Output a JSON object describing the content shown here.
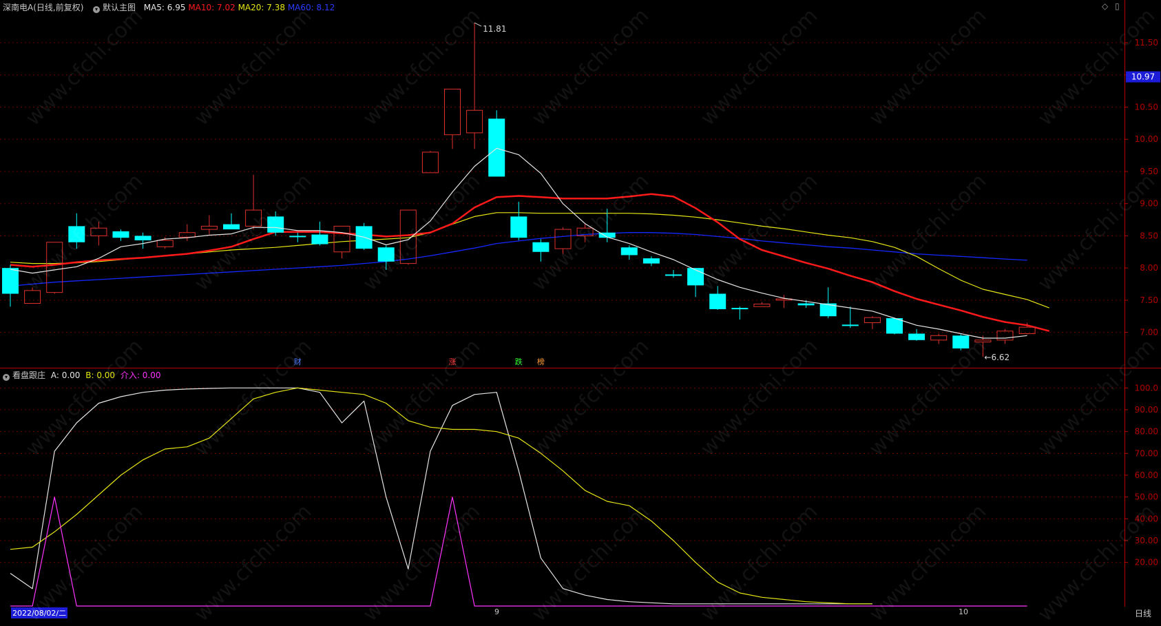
{
  "header": {
    "stock_title": "深南电A(日线,前复权)",
    "main_chart_label": "默认主图",
    "ma5_label": "MA5: 6.95",
    "ma10_label": "MA10: 7.02",
    "ma20_label": "MA20: 7.38",
    "ma60_label": "MA60: 8.12"
  },
  "indicator_header": {
    "name": "看盘跟庄",
    "a_label": "A: 0.00",
    "b_label": "B: 0.00",
    "c_label": "介入: 0.00"
  },
  "bottom_bar": {
    "date_label": "2022/08/02/二",
    "month_9": "9",
    "month_10": "10",
    "period_label": "日线"
  },
  "watermark": "www.cfchi.com",
  "colors": {
    "up": "#e0312d",
    "down": "#00ffff",
    "ma5": "#e6e6e6",
    "ma10": "#ff1a1a",
    "ma20": "#e6e614",
    "ma60": "#1428ff",
    "ind_a": "#e6e6e6",
    "ind_b": "#e6e614",
    "ind_c": "#ff33ff",
    "grid": "#6a0000",
    "axis": "#b40000"
  },
  "chart_data": [
    {
      "type": "candlestick",
      "title": "深南电A(日线,前复权)",
      "ylim": [
        6.45,
        11.95
      ],
      "y_ticks": [
        "7.00",
        "7.50",
        "8.00",
        "8.50",
        "9.00",
        "9.50",
        "10.00",
        "10.50",
        "11.00",
        "11.50"
      ],
      "current_price": "10.97",
      "annotations": {
        "high": "11.81",
        "low": "6.62"
      },
      "event_markers": [
        {
          "index": 13,
          "text": "财",
          "color": "#4d79ff"
        },
        {
          "index": 20,
          "text": "涨",
          "color": "#ff3333"
        },
        {
          "index": 23,
          "text": "跌",
          "color": "#33ff33"
        },
        {
          "index": 24,
          "text": "榜",
          "color": "#ff9933"
        }
      ],
      "candles": [
        {
          "o": 8.0,
          "c": 7.6,
          "h": 8.05,
          "l": 7.4
        },
        {
          "o": 7.45,
          "c": 7.65,
          "h": 7.7,
          "l": 7.45
        },
        {
          "o": 7.62,
          "c": 8.4,
          "h": 8.4,
          "l": 7.6
        },
        {
          "o": 8.65,
          "c": 8.4,
          "h": 8.85,
          "l": 8.3
        },
        {
          "o": 8.5,
          "c": 8.62,
          "h": 8.72,
          "l": 8.35
        },
        {
          "o": 8.57,
          "c": 8.47,
          "h": 8.6,
          "l": 8.42
        },
        {
          "o": 8.5,
          "c": 8.43,
          "h": 8.55,
          "l": 8.3
        },
        {
          "o": 8.33,
          "c": 8.43,
          "h": 8.48,
          "l": 8.3
        },
        {
          "o": 8.48,
          "c": 8.55,
          "h": 8.68,
          "l": 8.42
        },
        {
          "o": 8.6,
          "c": 8.65,
          "h": 8.82,
          "l": 8.52
        },
        {
          "o": 8.68,
          "c": 8.6,
          "h": 8.85,
          "l": 8.6
        },
        {
          "o": 8.65,
          "c": 8.9,
          "h": 9.45,
          "l": 8.6
        },
        {
          "o": 8.8,
          "c": 8.55,
          "h": 8.88,
          "l": 8.5
        },
        {
          "o": 8.5,
          "c": 8.48,
          "h": 8.55,
          "l": 8.4
        },
        {
          "o": 8.52,
          "c": 8.37,
          "h": 8.72,
          "l": 8.35
        },
        {
          "o": 8.25,
          "c": 8.65,
          "h": 8.65,
          "l": 8.15
        },
        {
          "o": 8.65,
          "c": 8.3,
          "h": 8.7,
          "l": 8.28
        },
        {
          "o": 8.32,
          "c": 8.1,
          "h": 8.35,
          "l": 7.97
        },
        {
          "o": 8.07,
          "c": 8.9,
          "h": 8.9,
          "l": 8.05
        },
        {
          "o": 9.48,
          "c": 9.8,
          "h": 9.82,
          "l": 9.48
        },
        {
          "o": 10.07,
          "c": 10.78,
          "h": 10.78,
          "l": 9.85
        },
        {
          "o": 10.1,
          "c": 10.45,
          "h": 11.81,
          "l": 9.85
        },
        {
          "o": 10.32,
          "c": 9.42,
          "h": 10.45,
          "l": 9.42
        },
        {
          "o": 8.8,
          "c": 8.47,
          "h": 9.03,
          "l": 8.43
        },
        {
          "o": 8.4,
          "c": 8.25,
          "h": 8.45,
          "l": 8.1
        },
        {
          "o": 8.3,
          "c": 8.6,
          "h": 8.63,
          "l": 8.22
        },
        {
          "o": 8.5,
          "c": 8.62,
          "h": 8.68,
          "l": 8.4
        },
        {
          "o": 8.55,
          "c": 8.47,
          "h": 8.92,
          "l": 8.4
        },
        {
          "o": 8.32,
          "c": 8.2,
          "h": 8.35,
          "l": 8.13
        },
        {
          "o": 8.15,
          "c": 8.07,
          "h": 8.18,
          "l": 8.03
        },
        {
          "o": 7.9,
          "c": 7.88,
          "h": 7.97,
          "l": 7.85
        },
        {
          "o": 8.0,
          "c": 7.73,
          "h": 8.0,
          "l": 7.55
        },
        {
          "o": 7.6,
          "c": 7.36,
          "h": 7.72,
          "l": 7.35
        },
        {
          "o": 7.38,
          "c": 7.36,
          "h": 7.4,
          "l": 7.2
        },
        {
          "o": 7.4,
          "c": 7.44,
          "h": 7.47,
          "l": 7.4
        },
        {
          "o": 7.5,
          "c": 7.52,
          "h": 7.58,
          "l": 7.38
        },
        {
          "o": 7.45,
          "c": 7.42,
          "h": 7.5,
          "l": 7.38
        },
        {
          "o": 7.45,
          "c": 7.25,
          "h": 7.7,
          "l": 7.22
        },
        {
          "o": 7.12,
          "c": 7.1,
          "h": 7.4,
          "l": 7.07
        },
        {
          "o": 7.15,
          "c": 7.23,
          "h": 7.25,
          "l": 7.05
        },
        {
          "o": 7.22,
          "c": 6.98,
          "h": 7.23,
          "l": 6.97
        },
        {
          "o": 6.98,
          "c": 6.88,
          "h": 7.05,
          "l": 6.87
        },
        {
          "o": 6.88,
          "c": 6.95,
          "h": 6.98,
          "l": 6.82
        },
        {
          "o": 6.95,
          "c": 6.75,
          "h": 6.97,
          "l": 6.72
        },
        {
          "o": 6.85,
          "c": 6.88,
          "h": 6.95,
          "l": 6.62
        },
        {
          "o": 6.88,
          "c": 7.02,
          "h": 7.05,
          "l": 6.82
        },
        {
          "o": 6.98,
          "c": 7.08,
          "h": 7.15,
          "l": 6.97
        }
      ],
      "series": [
        {
          "name": "MA5",
          "values": [
            7.98,
            7.92,
            7.97,
            8.02,
            8.15,
            8.33,
            8.38,
            8.45,
            8.47,
            8.51,
            8.53,
            8.63,
            8.63,
            8.58,
            8.58,
            8.55,
            8.48,
            8.36,
            8.44,
            8.73,
            9.18,
            9.58,
            9.86,
            9.76,
            9.47,
            9.0,
            8.69,
            8.48,
            8.38,
            8.25,
            8.13,
            7.97,
            7.82,
            7.7,
            7.61,
            7.53,
            7.48,
            7.43,
            7.38,
            7.33,
            7.22,
            7.11,
            7.05,
            6.98,
            6.91,
            6.91,
            6.95
          ]
        },
        {
          "name": "MA10",
          "values": [
            8.05,
            8.02,
            8.05,
            8.09,
            8.12,
            8.14,
            8.16,
            8.19,
            8.22,
            8.27,
            8.33,
            8.45,
            8.56,
            8.56,
            8.56,
            8.54,
            8.52,
            8.49,
            8.51,
            8.55,
            8.69,
            8.94,
            9.1,
            9.12,
            9.1,
            9.08,
            9.08,
            9.08,
            9.11,
            9.15,
            9.11,
            8.93,
            8.71,
            8.45,
            8.28,
            8.18,
            8.08,
            7.99,
            7.88,
            7.78,
            7.64,
            7.52,
            7.43,
            7.34,
            7.24,
            7.16,
            7.11,
            7.02
          ]
        },
        {
          "name": "MA20",
          "values": [
            8.09,
            8.07,
            8.07,
            8.08,
            8.1,
            8.13,
            8.16,
            8.19,
            8.22,
            8.25,
            8.28,
            8.3,
            8.32,
            8.35,
            8.38,
            8.41,
            8.43,
            8.45,
            8.47,
            8.55,
            8.68,
            8.8,
            8.86,
            8.86,
            8.85,
            8.85,
            8.85,
            8.85,
            8.85,
            8.84,
            8.82,
            8.79,
            8.75,
            8.7,
            8.65,
            8.61,
            8.56,
            8.51,
            8.47,
            8.41,
            8.32,
            8.18,
            7.99,
            7.81,
            7.67,
            7.59,
            7.51,
            7.38
          ]
        },
        {
          "name": "MA60",
          "values": [
            7.72,
            7.75,
            7.78,
            7.8,
            7.82,
            7.84,
            7.86,
            7.88,
            7.9,
            7.92,
            7.94,
            7.96,
            7.98,
            8.0,
            8.02,
            8.04,
            8.07,
            8.1,
            8.14,
            8.19,
            8.25,
            8.31,
            8.38,
            8.42,
            8.46,
            8.49,
            8.52,
            8.54,
            8.55,
            8.55,
            8.54,
            8.52,
            8.49,
            8.46,
            8.42,
            8.39,
            8.36,
            8.33,
            8.31,
            8.28,
            8.25,
            8.22,
            8.2,
            8.18,
            8.16,
            8.14,
            8.12
          ]
        }
      ]
    },
    {
      "type": "line",
      "title": "看盘跟庄",
      "ylim": [
        0,
        102
      ],
      "y_ticks": [
        "20.00",
        "30.00",
        "40.00",
        "50.00",
        "60.00",
        "70.00",
        "80.00",
        "90.00",
        "100.0"
      ],
      "series": [
        {
          "name": "A",
          "values": [
            15,
            8,
            71,
            84,
            93,
            96,
            98,
            99,
            99.5,
            99.8,
            100,
            100,
            100,
            100,
            98,
            84,
            94,
            50,
            17,
            71,
            92,
            97,
            98,
            62,
            22,
            8,
            5,
            3,
            2,
            1.5,
            1,
            1,
            1,
            1,
            1,
            1,
            1,
            1,
            1,
            1
          ]
        },
        {
          "name": "B",
          "values": [
            26,
            27,
            34,
            42,
            51,
            60,
            67,
            72,
            73,
            77,
            86,
            95,
            98,
            100,
            99,
            98,
            97,
            93,
            85,
            82,
            81,
            81,
            80,
            77,
            70,
            62,
            53,
            48,
            46,
            39,
            30,
            20,
            11,
            6,
            4,
            3,
            2,
            1.5,
            1,
            1
          ]
        },
        {
          "name": "介入",
          "values": [
            0,
            0,
            50,
            0,
            0,
            0,
            0,
            0,
            0,
            0,
            0,
            0,
            0,
            0,
            0,
            0,
            0,
            0,
            0,
            0,
            50,
            0,
            0,
            0,
            0,
            0,
            0,
            0,
            0,
            0,
            0,
            0,
            0,
            0,
            0,
            0,
            0,
            0,
            0,
            0,
            0,
            0,
            0,
            0,
            0,
            0,
            0
          ]
        }
      ]
    }
  ]
}
